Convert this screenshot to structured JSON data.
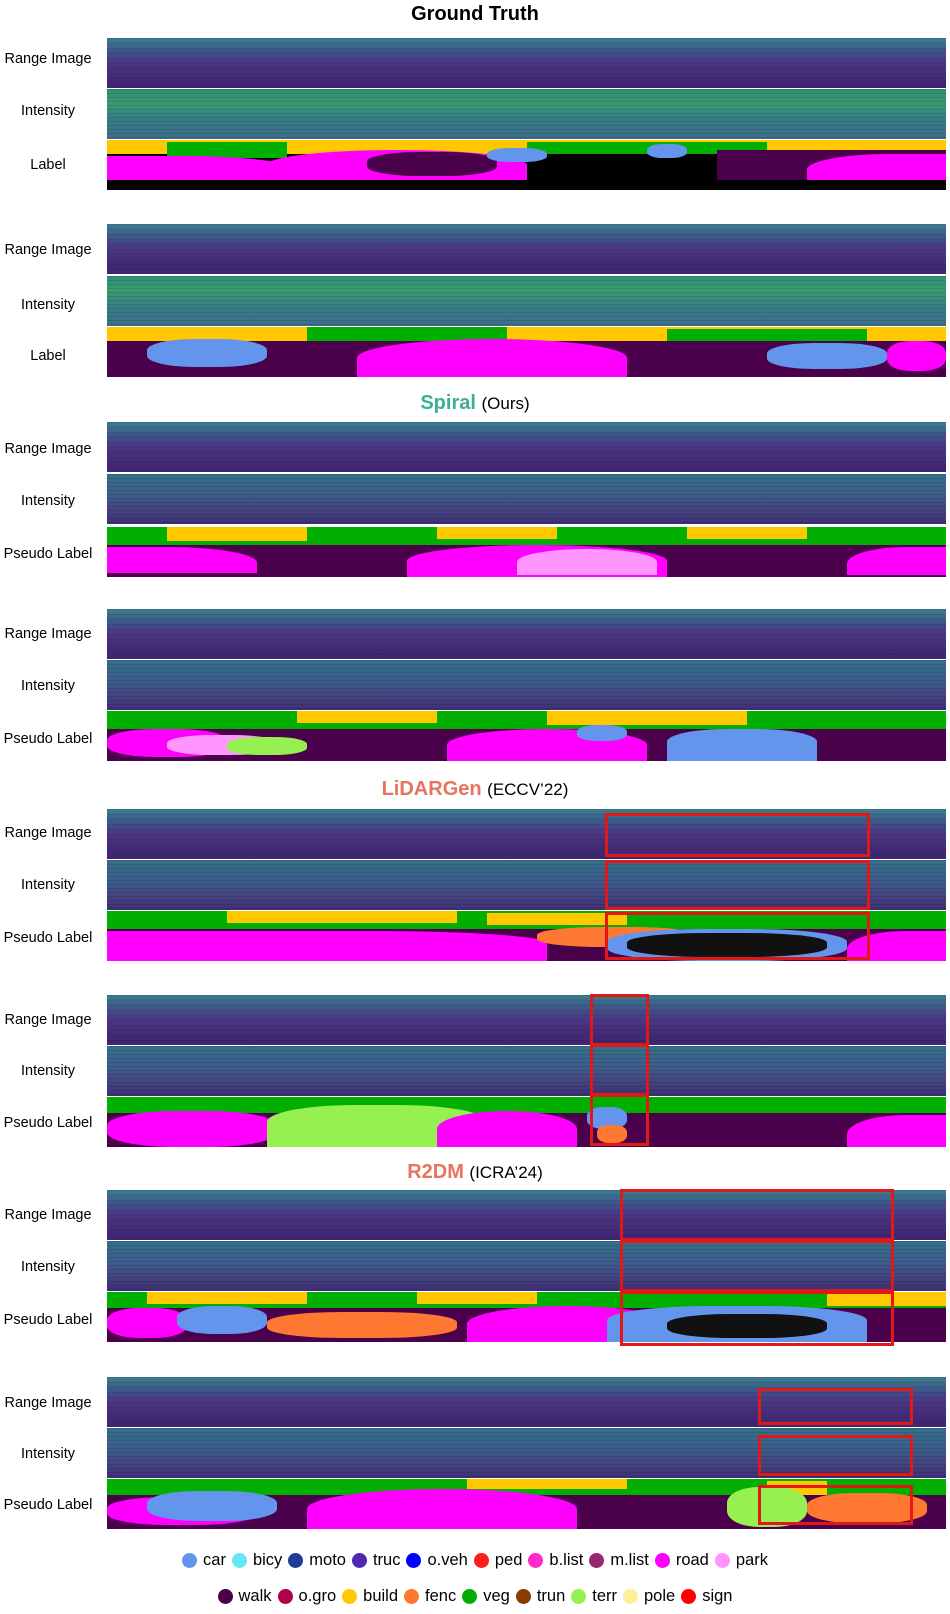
{
  "titles": {
    "ground_truth": "Ground Truth",
    "spiral": "Spiral",
    "spiral_sub": "(Ours)",
    "lidargen": "LiDARGen",
    "lidargen_sub": "(ECCV’22)",
    "r2dm": "R2DM",
    "r2dm_sub": "(ICRA’24)"
  },
  "row_labels": {
    "range": "Range Image",
    "intensity": "Intensity",
    "label": "Label",
    "pseudo": "Pseudo Label"
  },
  "colors": {
    "spiral": "#3daf94",
    "baseline": "#e8735f",
    "highlight_box": "#e01818"
  },
  "legend_row1": [
    {
      "name": "car",
      "color": "#6495ed"
    },
    {
      "name": "bicy",
      "color": "#64e6f5"
    },
    {
      "name": "moto",
      "color": "#1e3c96"
    },
    {
      "name": "truc",
      "color": "#5028b4"
    },
    {
      "name": "o.veh",
      "color": "#0000ff"
    },
    {
      "name": "ped",
      "color": "#ff1e1e"
    },
    {
      "name": "b.list",
      "color": "#ff28c8"
    },
    {
      "name": "m.list",
      "color": "#96286e"
    },
    {
      "name": "road",
      "color": "#ff00ff"
    },
    {
      "name": "park",
      "color": "#ff96ff"
    }
  ],
  "legend_row2": [
    {
      "name": "walk",
      "color": "#4b004b"
    },
    {
      "name": "o.gro",
      "color": "#af004b"
    },
    {
      "name": "build",
      "color": "#ffc800"
    },
    {
      "name": "fenc",
      "color": "#ff7832"
    },
    {
      "name": "veg",
      "color": "#00af00"
    },
    {
      "name": "trun",
      "color": "#873c00"
    },
    {
      "name": "terr",
      "color": "#96f050"
    },
    {
      "name": "pole",
      "color": "#fff096"
    },
    {
      "name": "sign",
      "color": "#ff0000"
    }
  ]
}
